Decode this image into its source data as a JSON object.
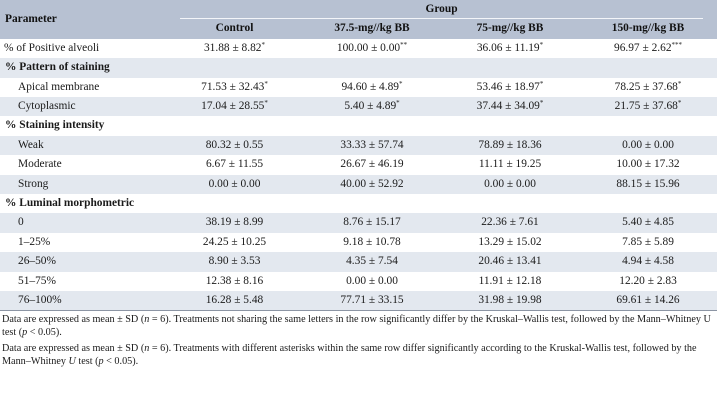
{
  "header": {
    "parameter": "Parameter",
    "group": "Group",
    "columns": [
      "Control",
      "37.5-mg//kg BB",
      "75-mg//kg BB",
      "150-mg//kg BB"
    ]
  },
  "rows": [
    {
      "type": "data",
      "label": "% of Positive alveoli",
      "indent": false,
      "shade": false,
      "values": [
        [
          "31.88 ± 8.82",
          "*"
        ],
        [
          "100.00 ± 0.00",
          "**"
        ],
        [
          "36.06 ± 11.19",
          "*"
        ],
        [
          "96.97 ± 2.62",
          "***"
        ]
      ]
    },
    {
      "type": "section",
      "label": "% Pattern of staining",
      "shade": true
    },
    {
      "type": "data",
      "label": "Apical membrane",
      "indent": true,
      "shade": false,
      "values": [
        [
          "71.53 ± 32.43",
          "*"
        ],
        [
          "94.60 ± 4.89",
          "*"
        ],
        [
          "53.46 ± 18.97",
          "*"
        ],
        [
          "78.25 ± 37.68",
          "*"
        ]
      ]
    },
    {
      "type": "data",
      "label": "Cytoplasmic",
      "indent": true,
      "shade": true,
      "values": [
        [
          "17.04 ± 28.55",
          "*"
        ],
        [
          "5.40 ± 4.89",
          "*"
        ],
        [
          "37.44 ± 34.09",
          "*"
        ],
        [
          "21.75 ± 37.68",
          "*"
        ]
      ]
    },
    {
      "type": "section",
      "label": "% Staining intensity",
      "shade": false
    },
    {
      "type": "data",
      "label": "Weak",
      "indent": true,
      "shade": true,
      "values": [
        [
          "80.32 ± 0.55",
          ""
        ],
        [
          "33.33 ± 57.74",
          ""
        ],
        [
          "78.89 ± 18.36",
          ""
        ],
        [
          "0.00 ± 0.00",
          ""
        ]
      ]
    },
    {
      "type": "data",
      "label": "Moderate",
      "indent": true,
      "shade": false,
      "values": [
        [
          "6.67 ± 11.55",
          ""
        ],
        [
          "26.67 ± 46.19",
          ""
        ],
        [
          "11.11 ± 19.25",
          ""
        ],
        [
          "10.00 ± 17.32",
          ""
        ]
      ]
    },
    {
      "type": "data",
      "label": "Strong",
      "indent": true,
      "shade": true,
      "values": [
        [
          "0.00 ± 0.00",
          ""
        ],
        [
          "40.00 ± 52.92",
          ""
        ],
        [
          "0.00 ± 0.00",
          ""
        ],
        [
          "88.15 ± 15.96",
          ""
        ]
      ]
    },
    {
      "type": "section",
      "label": "% Luminal morphometric",
      "shade": false
    },
    {
      "type": "data",
      "label": "0",
      "indent": true,
      "shade": true,
      "values": [
        [
          "38.19 ± 8.99",
          ""
        ],
        [
          "8.76 ± 15.17",
          ""
        ],
        [
          "22.36 ± 7.61",
          ""
        ],
        [
          "5.40 ± 4.85",
          ""
        ]
      ]
    },
    {
      "type": "data",
      "label": "1–25%",
      "indent": true,
      "shade": false,
      "values": [
        [
          "24.25 ± 10.25",
          ""
        ],
        [
          "9.18 ± 10.78",
          ""
        ],
        [
          "13.29 ± 15.02",
          ""
        ],
        [
          "7.85 ± 5.89",
          ""
        ]
      ]
    },
    {
      "type": "data",
      "label": "26–50%",
      "indent": true,
      "shade": true,
      "values": [
        [
          "8.90 ± 3.53",
          ""
        ],
        [
          "4.35 ± 7.54",
          ""
        ],
        [
          "20.46 ± 13.41",
          ""
        ],
        [
          "4.94 ± 4.58",
          ""
        ]
      ]
    },
    {
      "type": "data",
      "label": "51–75%",
      "indent": true,
      "shade": false,
      "values": [
        [
          "12.38 ± 8.16",
          ""
        ],
        [
          "0.00 ± 0.00",
          ""
        ],
        [
          "11.91 ± 12.18",
          ""
        ],
        [
          "12.20 ± 2.83",
          ""
        ]
      ]
    },
    {
      "type": "data",
      "label": "76–100%",
      "indent": true,
      "shade": true,
      "values": [
        [
          "16.28 ± 5.48",
          ""
        ],
        [
          "77.71 ± 33.15",
          ""
        ],
        [
          "31.98 ± 19.98",
          ""
        ],
        [
          "69.61 ± 14.26",
          ""
        ]
      ]
    }
  ],
  "notes": {
    "n1": {
      "a": "Data are expressed as mean ± SD (",
      "b": "n",
      "c": " = 6). Treatments not sharing the same letters in the row significantly differ by the Kruskal–Wallis test, followed by the Mann–Whitney U test (",
      "d": "p",
      "e": " < 0.05)."
    },
    "n2": {
      "a": "Data are expressed as mean ± SD (",
      "b": "n",
      "c": " = 6). Treatments with different asterisks within the same row differ significantly according to the Kruskal-Wallis test, followed by the Mann–Whitney ",
      "d": "U",
      "e": " test (",
      "f": "p",
      "g": " < 0.05)."
    }
  }
}
